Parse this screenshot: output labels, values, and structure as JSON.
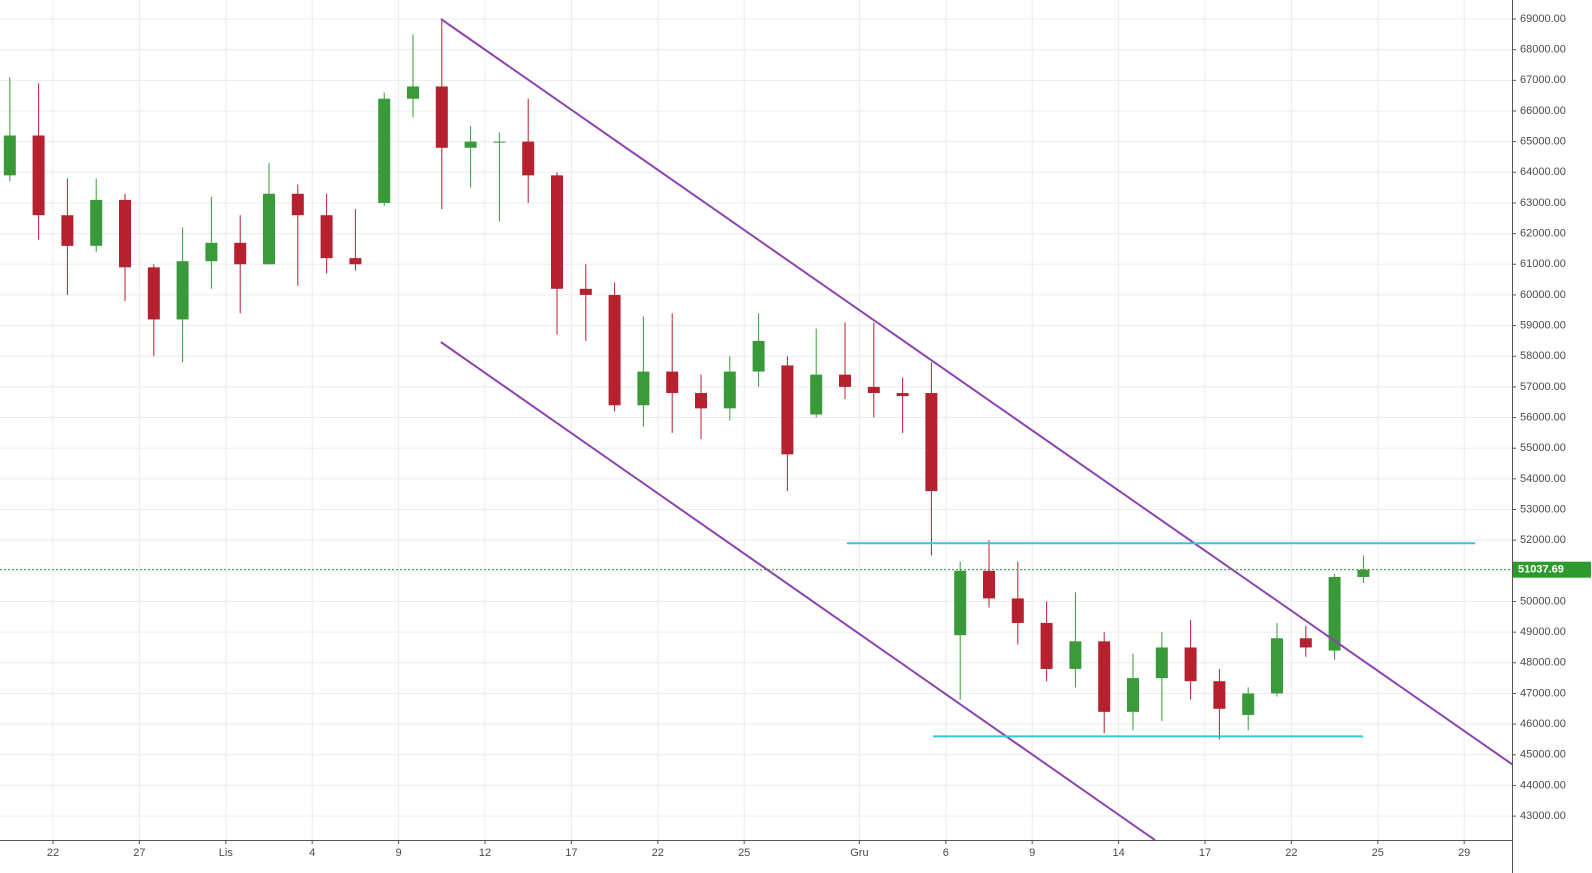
{
  "chart_data": {
    "type": "candlestick",
    "categories": [
      null,
      null,
      "22",
      null,
      null,
      "27",
      null,
      null,
      "Lis",
      null,
      null,
      "4",
      null,
      null,
      "9",
      null,
      null,
      "12",
      null,
      null,
      "17",
      null,
      null,
      "22",
      null,
      null,
      "25",
      null,
      null,
      null,
      "Gru",
      null,
      null,
      "6",
      null,
      null,
      "9",
      null,
      null,
      "14",
      null,
      null,
      "17",
      null,
      null,
      "22",
      null,
      null,
      "25",
      null,
      null,
      "29"
    ],
    "open": [
      63900,
      65200,
      62600,
      61600,
      63100,
      60900,
      59200,
      61100,
      61700,
      61000,
      63300,
      62600,
      61200,
      63000,
      66400,
      66800,
      64800,
      65000,
      65000,
      63900,
      60200,
      60000,
      56400,
      57500,
      56800,
      56300,
      57500,
      57700,
      56100,
      57400,
      57000,
      56800,
      56800,
      48900,
      51000,
      50100,
      49300,
      47800,
      48700,
      46400,
      47500,
      48500,
      47400,
      46300,
      47000,
      48800,
      48400,
      50800,
      null,
      null,
      null,
      null
    ],
    "high": [
      67100,
      66900,
      63800,
      63800,
      63300,
      61000,
      62200,
      63200,
      62600,
      64300,
      63600,
      63300,
      62800,
      66600,
      68500,
      69000,
      65500,
      65300,
      66400,
      64000,
      61000,
      60400,
      59300,
      59400,
      57400,
      58000,
      59400,
      58000,
      58900,
      59100,
      59100,
      57300,
      57800,
      51300,
      52000,
      51300,
      50000,
      50300,
      49000,
      48300,
      49000,
      49400,
      47800,
      47200,
      49300,
      49200,
      50900,
      51500,
      null,
      null,
      null,
      null
    ],
    "low": [
      63700,
      61800,
      60000,
      61400,
      59800,
      58000,
      57800,
      60200,
      59400,
      61000,
      60300,
      60700,
      60800,
      62900,
      65800,
      62800,
      63500,
      62400,
      63000,
      58700,
      58500,
      56200,
      55700,
      55500,
      55300,
      55900,
      57000,
      53600,
      56000,
      56600,
      56000,
      55500,
      51500,
      46800,
      49800,
      48600,
      47400,
      47200,
      45700,
      45800,
      46100,
      46800,
      45500,
      45800,
      46900,
      48200,
      48100,
      50600,
      null,
      null,
      null,
      null
    ],
    "close": [
      65200,
      62600,
      61600,
      63100,
      60900,
      59200,
      61100,
      61700,
      61000,
      63300,
      62600,
      61200,
      61000,
      66400,
      66800,
      64800,
      65000,
      65000,
      63900,
      60200,
      60000,
      56400,
      57500,
      56800,
      56300,
      57500,
      58500,
      54800,
      57400,
      57000,
      56800,
      56700,
      53600,
      51000,
      50100,
      49300,
      47800,
      48700,
      46400,
      47500,
      48500,
      47400,
      46500,
      47000,
      48800,
      48500,
      50800,
      51037.69,
      null,
      null,
      null,
      null
    ],
    "up_color": "#3a9a3a",
    "down_color": "#b5212e",
    "ylim": [
      42220,
      69620
    ],
    "yticks": [
      {
        "value": 43000,
        "label": "43000.00"
      },
      {
        "value": 44000,
        "label": "44000.00"
      },
      {
        "value": 45000,
        "label": "45000.00"
      },
      {
        "value": 46000,
        "label": "46000.00"
      },
      {
        "value": 47000,
        "label": "47000.00"
      },
      {
        "value": 48000,
        "label": "48000.00"
      },
      {
        "value": 49000,
        "label": "49000.00"
      },
      {
        "value": 50000,
        "label": "50000.00"
      },
      {
        "value": 51000,
        "label": "51000.00"
      },
      {
        "value": 52000,
        "label": "52000.00"
      },
      {
        "value": 53000,
        "label": "53000.00"
      },
      {
        "value": 54000,
        "label": "54000.00"
      },
      {
        "value": 55000,
        "label": "55000.00"
      },
      {
        "value": 56000,
        "label": "56000.00"
      },
      {
        "value": 57000,
        "label": "57000.00"
      },
      {
        "value": 58000,
        "label": "58000.00"
      },
      {
        "value": 59000,
        "label": "59000.00"
      },
      {
        "value": 60000,
        "label": "60000.00"
      },
      {
        "value": 61000,
        "label": "61000.00"
      },
      {
        "value": 62000,
        "label": "62000.00"
      },
      {
        "value": 63000,
        "label": "63000.00"
      },
      {
        "value": 64000,
        "label": "64000.00"
      },
      {
        "value": 65000,
        "label": "65000.00"
      },
      {
        "value": 66000,
        "label": "66000.00"
      },
      {
        "value": 67000,
        "label": "67000.00"
      },
      {
        "value": 68000,
        "label": "68000.00"
      },
      {
        "value": 69000,
        "label": "69000.00"
      }
    ],
    "last_price": 51037.69,
    "last_price_color": "#2e9a2e",
    "grid": true,
    "trend_lines": [
      {
        "color": "#8e44ad",
        "x": [
          15.47,
          52.77
        ],
        "y": [
          69000,
          44620
        ]
      },
      {
        "color": "#8e44ad",
        "x": [
          15.47,
          40.26
        ],
        "y": [
          58460,
          42220
        ]
      },
      {
        "color": "#33c6d6",
        "x": [
          29.57,
          51.38
        ],
        "y": [
          51900,
          51900
        ]
      },
      {
        "color": "#33c6d6",
        "x": [
          32.56,
          47.49
        ],
        "y": [
          45600,
          45600
        ]
      }
    ]
  }
}
